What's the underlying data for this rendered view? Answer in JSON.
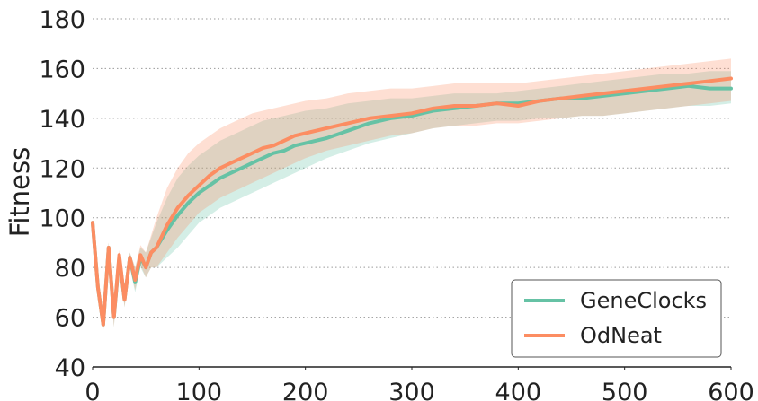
{
  "chart_data": {
    "type": "line",
    "title": "",
    "xlabel": "",
    "ylabel": "Fitness",
    "xlim": [
      0,
      600
    ],
    "ylim": [
      40,
      180
    ],
    "xticks": [
      0,
      100,
      200,
      300,
      400,
      500,
      600
    ],
    "yticks": [
      40,
      60,
      80,
      100,
      120,
      140,
      160,
      180
    ],
    "grid": "horizontal-dotted",
    "legend_position": "bottom-right",
    "series": [
      {
        "name": "GeneClocks",
        "color": "#66c2a5",
        "x": [
          0,
          5,
          10,
          15,
          20,
          25,
          30,
          35,
          40,
          45,
          50,
          55,
          60,
          70,
          80,
          90,
          100,
          110,
          120,
          130,
          140,
          150,
          160,
          170,
          180,
          190,
          200,
          220,
          240,
          260,
          280,
          300,
          320,
          340,
          360,
          380,
          400,
          420,
          440,
          460,
          480,
          500,
          520,
          540,
          560,
          580,
          600
        ],
        "y": [
          98,
          72,
          57,
          88,
          60,
          84,
          67,
          84,
          74,
          84,
          80,
          86,
          88,
          95,
          101,
          106,
          110,
          113,
          116,
          118,
          120,
          122,
          124,
          126,
          127,
          129,
          130,
          132,
          135,
          138,
          140,
          141,
          143,
          144,
          145,
          146,
          146,
          147,
          148,
          148,
          149,
          150,
          151,
          152,
          153,
          152,
          152
        ],
        "band_upper": [
          98,
          76,
          62,
          90,
          66,
          86,
          72,
          86,
          80,
          88,
          86,
          92,
          98,
          108,
          116,
          121,
          125,
          128,
          131,
          133,
          135,
          137,
          139,
          140,
          141,
          142,
          143,
          144,
          146,
          147,
          148,
          148,
          149,
          150,
          150,
          150,
          151,
          152,
          153,
          154,
          155,
          156,
          157,
          158,
          158,
          159,
          159
        ],
        "band_lower": [
          98,
          68,
          54,
          86,
          56,
          82,
          64,
          80,
          70,
          80,
          76,
          80,
          80,
          84,
          88,
          93,
          98,
          101,
          104,
          106,
          108,
          110,
          112,
          114,
          116,
          118,
          120,
          124,
          127,
          130,
          132,
          134,
          136,
          137,
          138,
          139,
          139,
          140,
          140,
          141,
          141,
          142,
          143,
          144,
          145,
          145,
          146
        ]
      },
      {
        "name": "OdNeat",
        "color": "#fc8d62",
        "x": [
          0,
          5,
          10,
          15,
          20,
          25,
          30,
          35,
          40,
          45,
          50,
          55,
          60,
          70,
          80,
          90,
          100,
          110,
          120,
          130,
          140,
          150,
          160,
          170,
          180,
          190,
          200,
          220,
          240,
          260,
          280,
          300,
          320,
          340,
          360,
          380,
          400,
          420,
          440,
          460,
          480,
          500,
          520,
          540,
          560,
          580,
          600
        ],
        "y": [
          98,
          72,
          57,
          88,
          60,
          85,
          67,
          84,
          75,
          85,
          80,
          86,
          88,
          97,
          104,
          109,
          113,
          117,
          120,
          122,
          124,
          126,
          128,
          129,
          131,
          133,
          134,
          136,
          138,
          140,
          141,
          142,
          144,
          145,
          145,
          146,
          145,
          147,
          148,
          149,
          150,
          151,
          152,
          153,
          154,
          155,
          156
        ],
        "band_upper": [
          98,
          76,
          62,
          90,
          66,
          87,
          72,
          86,
          80,
          89,
          86,
          93,
          100,
          112,
          120,
          126,
          130,
          133,
          136,
          138,
          140,
          142,
          143,
          144,
          145,
          146,
          147,
          148,
          150,
          151,
          152,
          152,
          153,
          154,
          154,
          154,
          154,
          155,
          156,
          157,
          158,
          159,
          160,
          161,
          162,
          163,
          164
        ],
        "band_lower": [
          98,
          68,
          54,
          86,
          56,
          83,
          64,
          80,
          71,
          81,
          76,
          80,
          80,
          86,
          92,
          97,
          102,
          105,
          108,
          110,
          112,
          114,
          116,
          118,
          120,
          122,
          124,
          127,
          129,
          131,
          133,
          134,
          136,
          137,
          137,
          138,
          138,
          139,
          140,
          141,
          141,
          142,
          143,
          144,
          145,
          146,
          147
        ]
      }
    ]
  }
}
